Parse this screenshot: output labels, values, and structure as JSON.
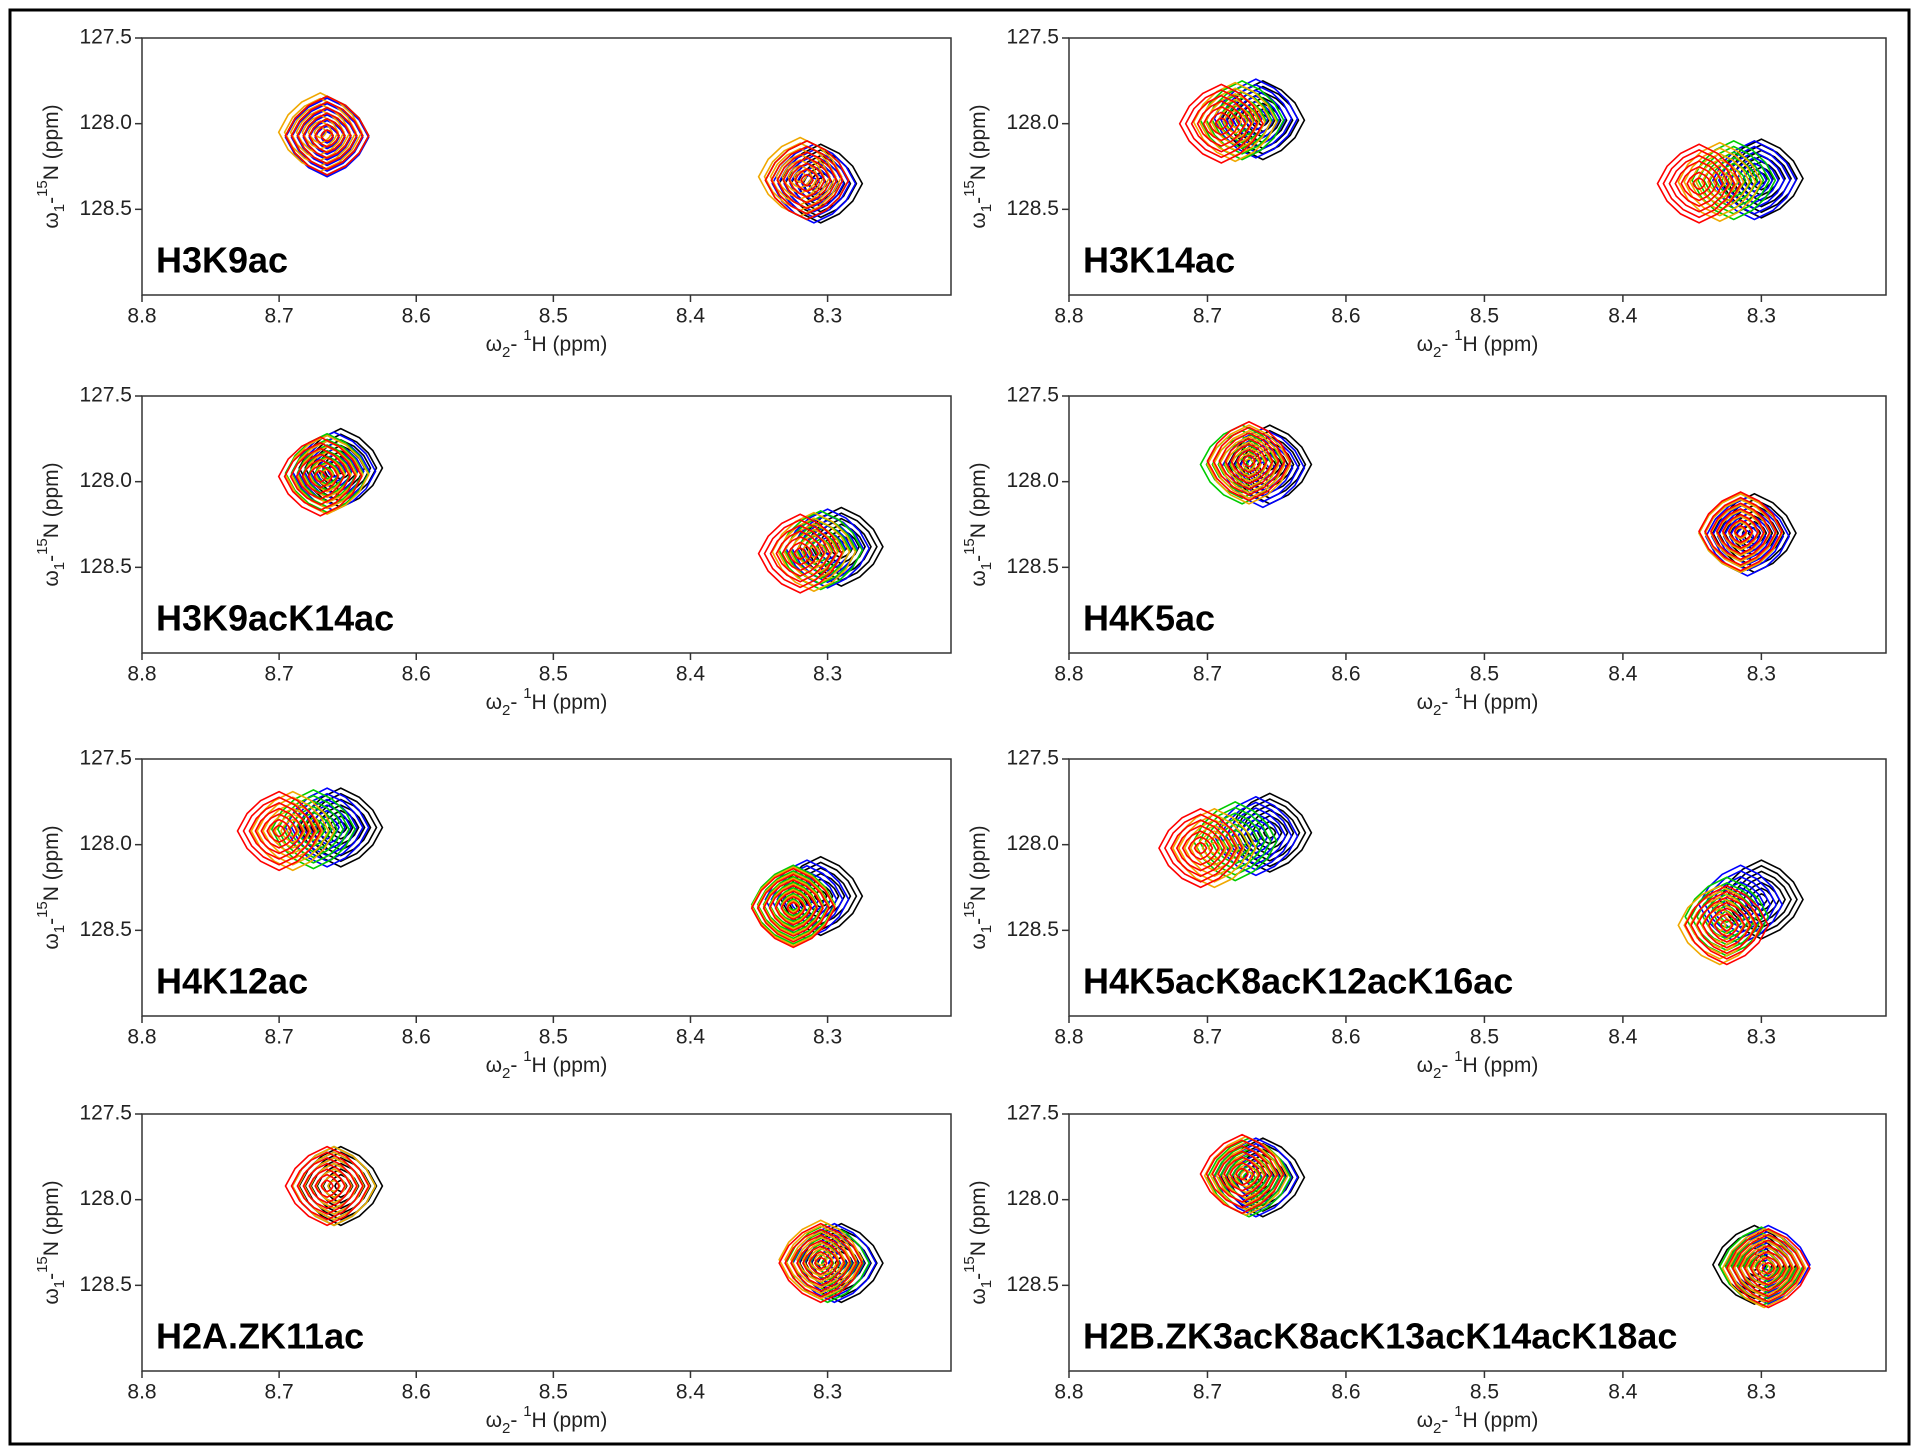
{
  "chart_data": [
    {
      "type": "contour",
      "title": "H3K9ac",
      "xlim": [
        8.8,
        8.21
      ],
      "ylim": [
        127.5,
        129.0
      ],
      "xticks": [
        8.8,
        8.7,
        8.6,
        8.5,
        8.4,
        8.3
      ],
      "yticks": [
        127.5,
        {
          "value": 128,
          "label": "128.0"
        },
        128.5
      ],
      "xlabel": [
        "ω",
        "2",
        "- ",
        "1",
        "H",
        "  (ppm)"
      ],
      "ylabel": [
        "ω",
        "1",
        "-",
        "15",
        "N",
        "  (ppm)"
      ],
      "series": [
        {
          "color": "#000000",
          "x": [
            8.665,
            8.305
          ],
          "values": [
            128.07,
            128.35
          ]
        },
        {
          "color": "#0000ff",
          "x": [
            8.665,
            8.31
          ],
          "values": [
            128.08,
            128.35
          ]
        },
        {
          "color": "#00cc00",
          "x": [
            8.665,
            8.315
          ],
          "values": [
            128.07,
            128.33
          ]
        },
        {
          "color": "#f0a800",
          "x": [
            8.67,
            8.32
          ],
          "values": [
            128.05,
            128.31
          ]
        },
        {
          "color": "#ff0000",
          "x": [
            8.665,
            8.315
          ],
          "values": [
            128.07,
            128.33
          ]
        }
      ]
    },
    {
      "type": "contour",
      "title": "H3K14ac",
      "xlim": [
        8.8,
        8.21
      ],
      "ylim": [
        127.5,
        129.0
      ],
      "xticks": [
        8.8,
        8.7,
        8.6,
        8.5,
        8.4,
        8.3
      ],
      "yticks": [
        127.5,
        {
          "value": 128,
          "label": "128.0"
        },
        128.5
      ],
      "xlabel": [
        "ω",
        "2",
        "- ",
        "1",
        "H",
        "  (ppm)"
      ],
      "ylabel": [
        "ω",
        "1",
        "-",
        "15",
        "N",
        "  (ppm)"
      ],
      "series": [
        {
          "color": "#000000",
          "x": [
            8.66,
            8.3
          ],
          "values": [
            127.98,
            128.32
          ]
        },
        {
          "color": "#0000ff",
          "x": [
            8.665,
            8.305
          ],
          "values": [
            127.97,
            128.33
          ]
        },
        {
          "color": "#00cc00",
          "x": [
            8.675,
            8.32
          ],
          "values": [
            127.98,
            128.33
          ]
        },
        {
          "color": "#f0a800",
          "x": [
            8.68,
            8.33
          ],
          "values": [
            127.99,
            128.34
          ]
        },
        {
          "color": "#ff0000",
          "x": [
            8.69,
            8.345
          ],
          "values": [
            128.0,
            128.35
          ]
        }
      ]
    },
    {
      "type": "contour",
      "title": "H3K9acK14ac",
      "xlim": [
        8.8,
        8.21
      ],
      "ylim": [
        127.5,
        129.0
      ],
      "xticks": [
        8.8,
        8.7,
        8.6,
        8.5,
        8.4,
        8.3
      ],
      "yticks": [
        127.5,
        {
          "value": 128,
          "label": "128.0"
        },
        128.5
      ],
      "xlabel": [
        "ω",
        "2",
        "- ",
        "1",
        "H",
        "  (ppm)"
      ],
      "ylabel": [
        "ω",
        "1",
        "-",
        "15",
        "N",
        "  (ppm)"
      ],
      "series": [
        {
          "color": "#000000",
          "x": [
            8.655,
            8.29
          ],
          "values": [
            127.92,
            128.38
          ]
        },
        {
          "color": "#0000ff",
          "x": [
            8.66,
            8.3
          ],
          "values": [
            127.94,
            128.39
          ]
        },
        {
          "color": "#00cc00",
          "x": [
            8.665,
            8.305
          ],
          "values": [
            127.95,
            128.4
          ]
        },
        {
          "color": "#f0a800",
          "x": [
            8.665,
            8.31
          ],
          "values": [
            127.96,
            128.41
          ]
        },
        {
          "color": "#ff0000",
          "x": [
            8.67,
            8.32
          ],
          "values": [
            127.97,
            128.42
          ]
        }
      ]
    },
    {
      "type": "contour",
      "title": "H4K5ac",
      "xlim": [
        8.8,
        8.21
      ],
      "ylim": [
        127.5,
        129.0
      ],
      "xticks": [
        8.8,
        8.7,
        8.6,
        8.5,
        8.4,
        8.3
      ],
      "yticks": [
        127.5,
        {
          "value": 128,
          "label": "128.0"
        },
        128.5
      ],
      "xlabel": [
        "ω",
        "2",
        "- ",
        "1",
        "H",
        "  (ppm)"
      ],
      "ylabel": [
        "ω",
        "1",
        "-",
        "15",
        "N",
        "  (ppm)"
      ],
      "series": [
        {
          "color": "#000000",
          "x": [
            8.655,
            8.305
          ],
          "values": [
            127.9,
            128.3
          ]
        },
        {
          "color": "#0000ff",
          "x": [
            8.66,
            8.31
          ],
          "values": [
            127.92,
            128.32
          ]
        },
        {
          "color": "#00cc00",
          "x": [
            8.675,
            8.315
          ],
          "values": [
            127.9,
            128.3
          ]
        },
        {
          "color": "#f0a800",
          "x": [
            8.67,
            8.315
          ],
          "values": [
            127.9,
            128.3
          ]
        },
        {
          "color": "#ff0000",
          "x": [
            8.67,
            8.315
          ],
          "values": [
            127.88,
            128.29
          ]
        }
      ]
    },
    {
      "type": "contour",
      "title": "H4K12ac",
      "xlim": [
        8.8,
        8.21
      ],
      "ylim": [
        127.5,
        129.0
      ],
      "xticks": [
        8.8,
        8.7,
        8.6,
        8.5,
        8.4,
        8.3
      ],
      "yticks": [
        127.5,
        {
          "value": 128,
          "label": "128.0"
        },
        128.5
      ],
      "xlabel": [
        "ω",
        "2",
        "- ",
        "1",
        "H",
        "  (ppm)"
      ],
      "ylabel": [
        "ω",
        "1",
        "-",
        "15",
        "N",
        "  (ppm)"
      ],
      "series": [
        {
          "color": "#000000",
          "x": [
            8.655,
            8.305
          ],
          "values": [
            127.9,
            128.3
          ]
        },
        {
          "color": "#0000ff",
          "x": [
            8.665,
            8.315
          ],
          "values": [
            127.9,
            128.32
          ]
        },
        {
          "color": "#00cc00",
          "x": [
            8.675,
            8.325
          ],
          "values": [
            127.91,
            128.35
          ]
        },
        {
          "color": "#f0a800",
          "x": [
            8.69,
            8.325
          ],
          "values": [
            127.92,
            128.36
          ]
        },
        {
          "color": "#ff0000",
          "x": [
            8.7,
            8.325
          ],
          "values": [
            127.92,
            128.37
          ]
        }
      ]
    },
    {
      "type": "contour",
      "title": "H4K5acK8acK12acK16ac",
      "xlim": [
        8.8,
        8.21
      ],
      "ylim": [
        127.5,
        129.0
      ],
      "xticks": [
        8.8,
        8.7,
        8.6,
        8.5,
        8.4,
        8.3
      ],
      "yticks": [
        127.5,
        {
          "value": 128,
          "label": "128.0"
        },
        128.5
      ],
      "xlabel": [
        "ω",
        "2",
        "- ",
        "1",
        "H",
        "  (ppm)"
      ],
      "ylabel": [
        "ω",
        "1",
        "-",
        "15",
        "N",
        "  (ppm)"
      ],
      "series": [
        {
          "color": "#000000",
          "x": [
            8.655,
            8.3
          ],
          "values": [
            127.93,
            128.32
          ]
        },
        {
          "color": "#0000ff",
          "x": [
            8.665,
            8.315
          ],
          "values": [
            127.95,
            128.35
          ]
        },
        {
          "color": "#00cc00",
          "x": [
            8.68,
            8.325
          ],
          "values": [
            127.98,
            128.42
          ]
        },
        {
          "color": "#f0a800",
          "x": [
            8.695,
            8.33
          ],
          "values": [
            128.02,
            128.47
          ]
        },
        {
          "color": "#ff0000",
          "x": [
            8.705,
            8.325
          ],
          "values": [
            128.02,
            128.47
          ]
        }
      ]
    },
    {
      "type": "contour",
      "title": "H2A.ZK11ac",
      "xlim": [
        8.8,
        8.21
      ],
      "ylim": [
        127.5,
        129.0
      ],
      "xticks": [
        8.8,
        8.7,
        8.6,
        8.5,
        8.4,
        8.3
      ],
      "yticks": [
        127.5,
        {
          "value": 128,
          "label": "128.0"
        },
        128.5
      ],
      "xlabel": [
        "ω",
        "2",
        "- ",
        "1",
        "H",
        "  (ppm)"
      ],
      "ylabel": [
        "ω",
        "1",
        "-",
        "15",
        "N",
        "  (ppm)"
      ],
      "series": [
        {
          "color": "#000000",
          "x": [
            8.655,
            8.29
          ],
          "values": [
            127.92,
            128.37
          ]
        },
        {
          "color": "#0000ff",
          "x": [
            8.66,
            8.295
          ],
          "values": [
            127.92,
            128.37
          ]
        },
        {
          "color": "#00cc00",
          "x": [
            8.66,
            8.3
          ],
          "values": [
            127.92,
            128.37
          ]
        },
        {
          "color": "#f0a800",
          "x": [
            8.66,
            8.305
          ],
          "values": [
            127.92,
            128.35
          ]
        },
        {
          "color": "#ff0000",
          "x": [
            8.665,
            8.305
          ],
          "values": [
            127.92,
            128.37
          ]
        }
      ]
    },
    {
      "type": "contour",
      "title": "H2B.ZK3acK8acK13acK14acK18ac",
      "xlim": [
        8.8,
        8.21
      ],
      "ylim": [
        127.5,
        129.0
      ],
      "xticks": [
        8.8,
        8.7,
        8.6,
        8.5,
        8.4,
        8.3
      ],
      "yticks": [
        127.5,
        {
          "value": 128,
          "label": "128.0"
        },
        128.5
      ],
      "xlabel": [
        "ω",
        "2",
        "- ",
        "1",
        "H",
        "  (ppm)"
      ],
      "ylabel": [
        "ω",
        "1",
        "-",
        "15",
        "N",
        "  (ppm)"
      ],
      "series": [
        {
          "color": "#000000",
          "x": [
            8.66,
            8.305
          ],
          "values": [
            127.87,
            128.38
          ]
        },
        {
          "color": "#0000ff",
          "x": [
            8.665,
            8.295
          ],
          "values": [
            127.87,
            128.38
          ]
        },
        {
          "color": "#00cc00",
          "x": [
            8.67,
            8.3
          ],
          "values": [
            127.87,
            128.39
          ]
        },
        {
          "color": "#f0a800",
          "x": [
            8.672,
            8.298
          ],
          "values": [
            127.86,
            128.4
          ]
        },
        {
          "color": "#ff0000",
          "x": [
            8.675,
            8.295
          ],
          "values": [
            127.85,
            128.4
          ]
        }
      ]
    }
  ]
}
